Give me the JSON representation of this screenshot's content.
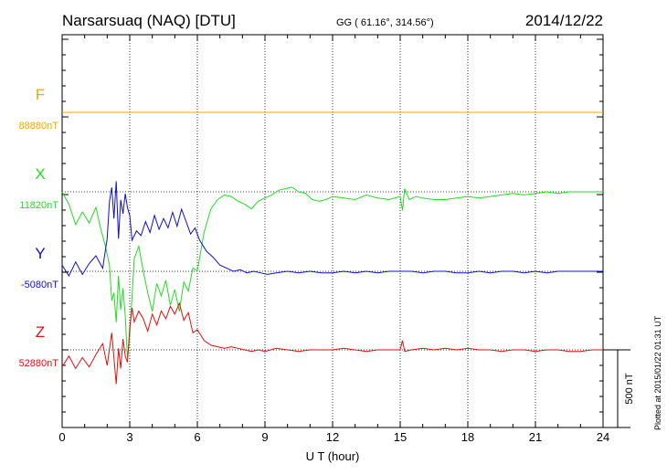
{
  "header": {
    "station": "Narsarsuaq (NAQ)  [DTU]",
    "coords": "GG ( 61.16°, 314.56°)",
    "date": "2014/12/22"
  },
  "plotted_note": "Plotted at 2015/01/22 01:31  UT",
  "scale_label": "500 nT",
  "colors": {
    "F": "#f0a800",
    "X": "#22dd22",
    "Y": "#1010cc",
    "Z": "#e01010"
  },
  "chart_data": {
    "type": "line",
    "xlabel": "U T (hour)",
    "xlim": [
      0,
      24
    ],
    "x_ticks": [
      "0",
      "3",
      "6",
      "9",
      "12",
      "15",
      "18",
      "21",
      "24"
    ],
    "grid": true,
    "scale_bar_nT": 500,
    "components": [
      {
        "name": "F",
        "baseline_label": "88880nT",
        "color": "#f0a800",
        "x": [
          0,
          24
        ],
        "y": [
          88880,
          88880
        ]
      },
      {
        "name": "X",
        "baseline_label": "11820nT",
        "color": "#22dd22",
        "x": [
          0,
          0.3,
          0.6,
          0.9,
          1.2,
          1.5,
          1.7,
          1.9,
          2.1,
          2.2,
          2.3,
          2.4,
          2.5,
          2.6,
          2.7,
          2.8,
          2.9,
          3.0,
          3.2,
          3.4,
          3.6,
          3.8,
          4.0,
          4.2,
          4.4,
          4.6,
          4.8,
          5.0,
          5.2,
          5.4,
          5.6,
          5.8,
          6.0,
          6.3,
          6.6,
          6.9,
          7.2,
          7.5,
          7.8,
          8.1,
          8.4,
          8.7,
          9.0,
          9.3,
          9.6,
          9.9,
          10.2,
          10.5,
          10.8,
          11.1,
          11.4,
          11.7,
          12.0,
          12.5,
          13.0,
          13.5,
          14.0,
          14.5,
          15.0,
          15.1,
          15.2,
          15.4,
          15.7,
          16.0,
          16.5,
          17.0,
          17.5,
          18.0,
          18.5,
          19.0,
          19.5,
          20.0,
          20.5,
          21.0,
          21.5,
          22.0,
          22.5,
          23.0,
          23.5,
          24.0
        ],
        "y": [
          11820,
          11740,
          11610,
          11690,
          11620,
          11720,
          11590,
          11480,
          11350,
          11120,
          11170,
          10980,
          11280,
          11060,
          11200,
          11020,
          10750,
          10890,
          11390,
          11470,
          11310,
          11170,
          11050,
          11230,
          11150,
          11250,
          11090,
          11190,
          11050,
          11240,
          11180,
          11330,
          11310,
          11560,
          11710,
          11770,
          11800,
          11790,
          11760,
          11740,
          11710,
          11760,
          11780,
          11800,
          11830,
          11840,
          11850,
          11820,
          11810,
          11770,
          11760,
          11770,
          11790,
          11780,
          11770,
          11800,
          11780,
          11770,
          11790,
          11700,
          11840,
          11770,
          11790,
          11780,
          11770,
          11770,
          11780,
          11790,
          11780,
          11790,
          11800,
          11810,
          11800,
          11810,
          11820,
          11810,
          11820,
          11820,
          11820,
          11820
        ]
      },
      {
        "name": "Y",
        "baseline_label": "-5080nT",
        "color": "#1010cc",
        "x": [
          0,
          0.3,
          0.6,
          0.9,
          1.2,
          1.5,
          1.8,
          2.0,
          2.1,
          2.2,
          2.3,
          2.4,
          2.5,
          2.6,
          2.7,
          2.8,
          2.9,
          3.0,
          3.1,
          3.3,
          3.5,
          3.7,
          3.9,
          4.1,
          4.3,
          4.5,
          4.7,
          4.9,
          5.1,
          5.3,
          5.5,
          5.7,
          5.9,
          6.1,
          6.4,
          6.7,
          7.0,
          7.3,
          7.6,
          7.9,
          8.2,
          8.5,
          8.8,
          9.1,
          9.5,
          10.0,
          10.5,
          11.0,
          11.5,
          12.0,
          12.5,
          13.0,
          13.5,
          14.0,
          14.5,
          15.0,
          15.5,
          16.0,
          16.5,
          17.0,
          17.5,
          18.0,
          18.5,
          19.0,
          19.5,
          20.0,
          20.5,
          21.0,
          21.5,
          22.0,
          22.5,
          23.0,
          23.5,
          24.0
        ],
        "y": [
          -5040,
          -5110,
          -5020,
          -5100,
          -5030,
          -4980,
          -5060,
          -4870,
          -4630,
          -4540,
          -4740,
          -4500,
          -4870,
          -4620,
          -4710,
          -4580,
          -4670,
          -4720,
          -4880,
          -4820,
          -4850,
          -4760,
          -4830,
          -4720,
          -4810,
          -4740,
          -4800,
          -4700,
          -4790,
          -4680,
          -4760,
          -4840,
          -4800,
          -4880,
          -4950,
          -4990,
          -5040,
          -5060,
          -5080,
          -5070,
          -5090,
          -5080,
          -5090,
          -5100,
          -5090,
          -5080,
          -5090,
          -5080,
          -5090,
          -5090,
          -5080,
          -5090,
          -5080,
          -5090,
          -5080,
          -5080,
          -5080,
          -5090,
          -5080,
          -5080,
          -5090,
          -5090,
          -5080,
          -5090,
          -5080,
          -5080,
          -5090,
          -5080,
          -5090,
          -5080,
          -5080,
          -5080,
          -5080,
          -5080
        ]
      },
      {
        "name": "Z",
        "baseline_label": "52880nT",
        "color": "#e01010",
        "x": [
          0,
          0.3,
          0.6,
          0.9,
          1.2,
          1.5,
          1.8,
          2.0,
          2.2,
          2.4,
          2.5,
          2.6,
          2.7,
          2.8,
          2.9,
          3.0,
          3.1,
          3.2,
          3.4,
          3.6,
          3.8,
          4.0,
          4.2,
          4.4,
          4.6,
          4.8,
          5.0,
          5.2,
          5.4,
          5.6,
          5.8,
          6.0,
          6.3,
          6.6,
          6.9,
          7.2,
          7.5,
          7.8,
          8.1,
          8.4,
          8.7,
          9.0,
          9.5,
          10.0,
          10.5,
          11.0,
          11.5,
          12.0,
          12.5,
          13.0,
          13.5,
          14.0,
          14.5,
          15.0,
          15.1,
          15.2,
          15.5,
          16.0,
          16.5,
          17.0,
          17.5,
          18.0,
          18.5,
          19.0,
          19.5,
          20.0,
          20.5,
          21.0,
          21.5,
          22.0,
          22.5,
          23.0,
          23.5,
          24.0
        ],
        "y": [
          52770,
          52840,
          52760,
          52830,
          52770,
          52850,
          52920,
          52780,
          52990,
          52660,
          52890,
          52760,
          52950,
          52840,
          52800,
          53020,
          53150,
          53060,
          53130,
          53080,
          53000,
          53110,
          53040,
          53130,
          53080,
          53160,
          53110,
          53180,
          53070,
          53120,
          52990,
          53010,
          52940,
          52910,
          52900,
          52890,
          52900,
          52890,
          52880,
          52870,
          52880,
          52870,
          52890,
          52880,
          52870,
          52880,
          52880,
          52880,
          52890,
          52880,
          52870,
          52880,
          52880,
          52880,
          52940,
          52870,
          52880,
          52890,
          52880,
          52890,
          52880,
          52890,
          52880,
          52880,
          52870,
          52880,
          52880,
          52870,
          52880,
          52880,
          52870,
          52870,
          52880,
          52880
        ]
      }
    ]
  }
}
